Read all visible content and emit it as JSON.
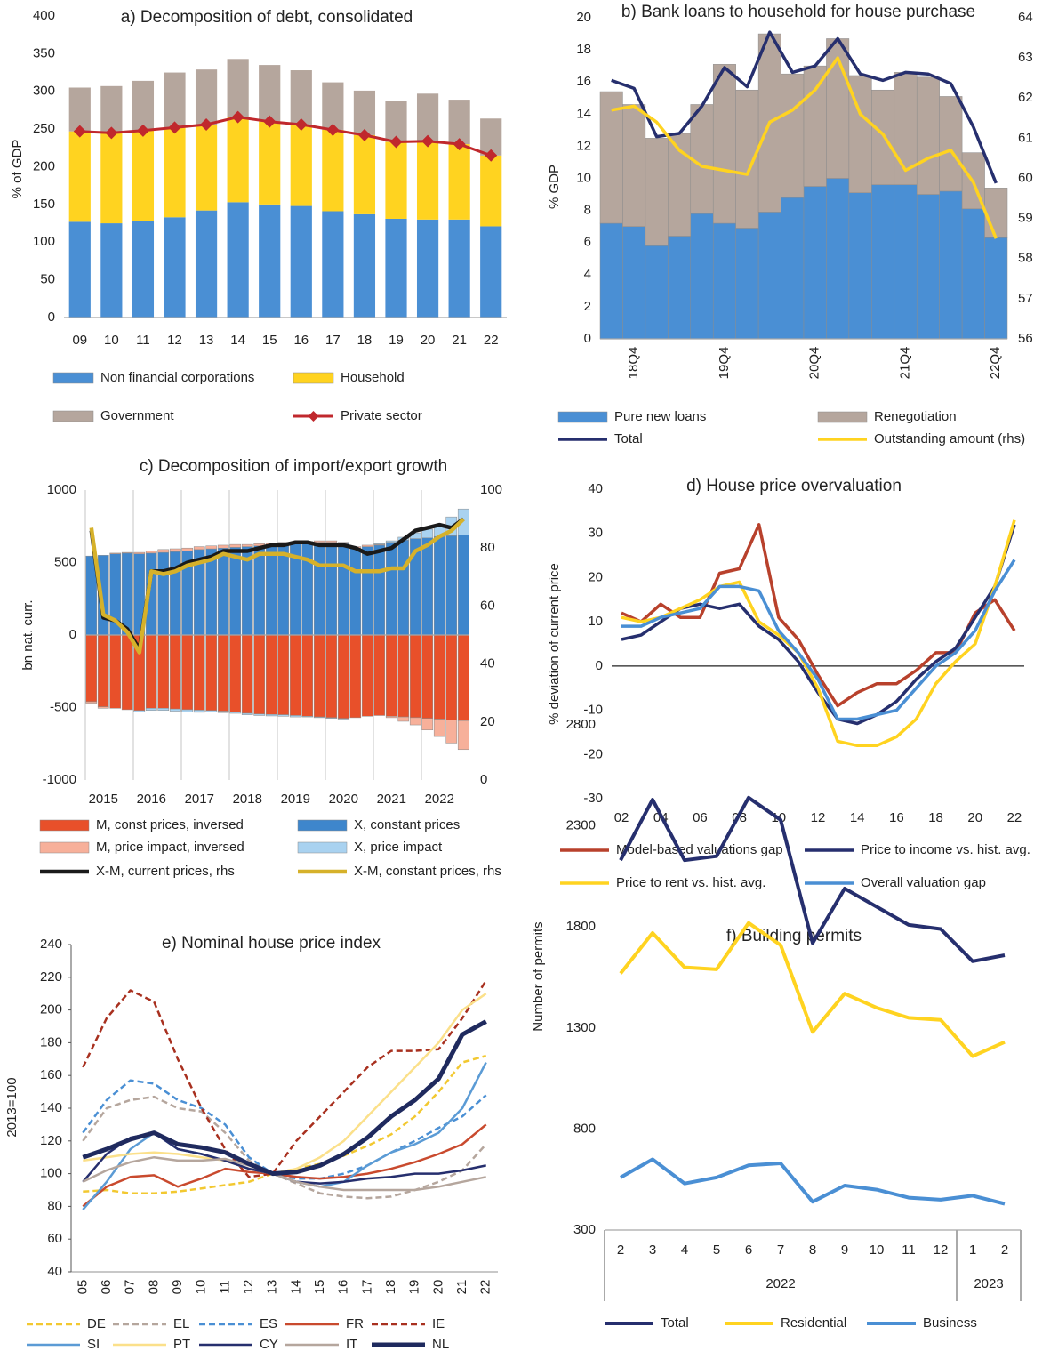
{
  "chart_data": [
    {
      "type": "bar",
      "title": "a) Decomposition of debt, consolidated",
      "y_label": "% of GDP",
      "categories": [
        "09",
        "10",
        "11",
        "12",
        "13",
        "14",
        "15",
        "16",
        "17",
        "18",
        "19",
        "20",
        "21",
        "22"
      ],
      "ylim": [
        0,
        400
      ],
      "yticks": [
        0,
        50,
        100,
        150,
        200,
        250,
        300,
        350,
        400
      ],
      "series": [
        {
          "name": "Non financial corporations",
          "type": "bar",
          "color": "#4a8fd4",
          "values": [
            127,
            125,
            128,
            133,
            142,
            153,
            150,
            148,
            141,
            137,
            131,
            130,
            130,
            121
          ]
        },
        {
          "name": "Household",
          "type": "bar",
          "color": "#ffd320",
          "values": [
            120,
            120,
            120,
            119,
            114,
            113,
            110,
            108,
            108,
            105,
            102,
            104,
            100,
            94
          ]
        },
        {
          "name": "Government",
          "type": "bar",
          "color": "#b5a69d",
          "values": [
            58,
            62,
            66,
            73,
            73,
            77,
            75,
            72,
            63,
            59,
            54,
            63,
            59,
            49
          ]
        },
        {
          "name": "Private sector",
          "type": "line",
          "marker": "diamond",
          "color": "#c0282d",
          "values": [
            247,
            245,
            248,
            252,
            256,
            266,
            260,
            256,
            249,
            242,
            233,
            234,
            230,
            215
          ]
        }
      ]
    },
    {
      "type": "bar",
      "title": "b) Bank loans to household for house purchase",
      "y_label": "% GDP",
      "categories": [
        null,
        "18Q4",
        null,
        null,
        null,
        "19Q4",
        null,
        null,
        null,
        "20Q4",
        null,
        null,
        null,
        "21Q4",
        null,
        null,
        null,
        "22Q4"
      ],
      "ylim": [
        0,
        20
      ],
      "yticks": [
        0,
        2,
        4,
        6,
        8,
        10,
        12,
        14,
        16,
        18,
        20
      ],
      "y2lim": [
        56,
        64
      ],
      "y2ticks": [
        56,
        57,
        58,
        59,
        60,
        61,
        62,
        63,
        64
      ],
      "series": [
        {
          "name": "Pure new loans",
          "type": "bar",
          "color": "#4a8fd4",
          "values": [
            7.2,
            7.0,
            5.8,
            6.4,
            7.8,
            7.2,
            6.9,
            7.9,
            8.8,
            9.5,
            10.0,
            9.1,
            9.6,
            9.6,
            9.0,
            9.2,
            8.1,
            6.3
          ]
        },
        {
          "name": "Renegotiation",
          "type": "bar",
          "color": "#b5a69d",
          "values": [
            8.2,
            7.6,
            6.7,
            6.4,
            6.8,
            9.9,
            8.6,
            11.1,
            7.7,
            7.5,
            8.7,
            7.3,
            5.9,
            7.0,
            7.3,
            5.9,
            3.5,
            3.1
          ]
        },
        {
          "name": "Total",
          "type": "line",
          "color": "#262f6e",
          "values": [
            16.1,
            15.6,
            12.6,
            12.8,
            14.5,
            16.9,
            15.7,
            19.1,
            16.6,
            17.0,
            18.7,
            16.5,
            16.1,
            16.6,
            16.5,
            15.9,
            13.2,
            9.7
          ]
        },
        {
          "name": "Outstanding amount (rhs)",
          "type": "line",
          "axis": "y2",
          "color": "#ffd320",
          "values": [
            61.7,
            61.8,
            61.4,
            60.7,
            60.3,
            60.2,
            60.1,
            61.4,
            61.7,
            62.2,
            63.0,
            61.6,
            61.1,
            60.2,
            60.5,
            60.7,
            59.9,
            58.5
          ]
        }
      ]
    },
    {
      "type": "bar",
      "title": "c) Decomposition of import/export growth",
      "y_label": "bn nat. curr.",
      "xgrid": true,
      "categories": [
        null,
        "2015",
        null,
        null,
        null,
        "2016",
        null,
        null,
        null,
        "2017",
        null,
        null,
        null,
        "2018",
        null,
        null,
        null,
        "2019",
        null,
        null,
        null,
        "2020",
        null,
        null,
        null,
        "2021",
        null,
        null,
        null,
        "2022",
        null,
        null
      ],
      "ylim": [
        -1000,
        1000
      ],
      "yticks": [
        -1000,
        -500,
        0,
        500,
        1000
      ],
      "y2lim": [
        0,
        100
      ],
      "y2ticks": [
        0,
        20,
        40,
        60,
        80,
        100
      ],
      "series": [
        {
          "name": "M, const prices, inversed",
          "type": "bar",
          "color": "#e8502a",
          "values": [
            -460,
            -495,
            -505,
            -515,
            -520,
            -505,
            -505,
            -510,
            -515,
            -518,
            -520,
            -525,
            -530,
            -540,
            -545,
            -548,
            -550,
            -555,
            -560,
            -565,
            -570,
            -575,
            -570,
            -560,
            -555,
            -560,
            -565,
            -570,
            -575,
            -580,
            -585,
            -590
          ]
        },
        {
          "name": "X, constant prices",
          "type": "bar",
          "color": "#3e86cc",
          "values": [
            545,
            550,
            560,
            565,
            560,
            565,
            570,
            575,
            580,
            590,
            595,
            600,
            605,
            610,
            615,
            620,
            625,
            630,
            635,
            640,
            640,
            630,
            600,
            610,
            620,
            640,
            655,
            665,
            670,
            680,
            685,
            690
          ]
        },
        {
          "name": "M, price impact, inversed",
          "type": "bar",
          "color": "#f7b09a",
          "values": [
            -10,
            -10,
            5,
            5,
            10,
            15,
            20,
            20,
            20,
            20,
            20,
            20,
            20,
            15,
            15,
            15,
            15,
            10,
            10,
            10,
            10,
            10,
            10,
            10,
            5,
            -10,
            -30,
            -50,
            -80,
            -120,
            -160,
            -200
          ]
        },
        {
          "name": "X, price impact",
          "type": "bar",
          "color": "#a9d2f0",
          "values": [
            0,
            0,
            0,
            0,
            -10,
            -15,
            -15,
            -15,
            -15,
            -15,
            -10,
            -10,
            -10,
            -10,
            -10,
            -10,
            -10,
            -10,
            -5,
            -5,
            -5,
            -5,
            0,
            0,
            5,
            10,
            20,
            40,
            60,
            80,
            130,
            180
          ]
        },
        {
          "name": "X-M, current prices, rhs",
          "type": "line",
          "axis": "y2",
          "color": "#1a1a1a",
          "values": [
            86,
            56,
            55,
            52,
            45,
            72,
            72,
            73,
            75,
            76,
            77,
            79,
            79,
            79,
            80,
            81,
            81,
            82,
            82,
            81,
            81,
            81,
            80,
            78,
            79,
            80,
            83,
            86,
            87,
            88,
            87,
            90
          ]
        },
        {
          "name": "X-M, constant prices, rhs",
          "type": "line",
          "axis": "y2",
          "color": "#d6b12a",
          "values": [
            87,
            57,
            55,
            51,
            44,
            72,
            71,
            72,
            74,
            75,
            76,
            78,
            77,
            76,
            78,
            78,
            78,
            77,
            76,
            74,
            74,
            74,
            72,
            72,
            72,
            73,
            73,
            79,
            81,
            84,
            86,
            90
          ]
        }
      ]
    },
    {
      "type": "line",
      "title": "d) House price overvaluation",
      "y_label": "% deviation of current price",
      "categories": [
        "02",
        null,
        "04",
        null,
        "06",
        null,
        "08",
        null,
        "10",
        null,
        "12",
        null,
        "14",
        null,
        "16",
        null,
        "18",
        null,
        "20",
        null,
        "22"
      ],
      "ylim": [
        -30,
        40
      ],
      "yticks": [
        -30,
        -20,
        -10,
        0,
        10,
        20,
        30,
        40
      ],
      "series": [
        {
          "name": "Model-based valuations gap",
          "color": "#b8412c",
          "values": [
            12,
            10,
            14,
            11,
            11,
            21,
            22,
            32,
            11,
            6,
            -2,
            -9,
            -6,
            -4,
            -4,
            -1,
            3,
            3,
            12,
            15,
            8
          ]
        },
        {
          "name": "Price to income vs. hist. avg.",
          "color": "#262f6e",
          "values": [
            6,
            7,
            10,
            13,
            14,
            13,
            14,
            9,
            6,
            1,
            -6,
            -12,
            -13,
            -11,
            -8,
            -3,
            1,
            4,
            11,
            18,
            32
          ]
        },
        {
          "name": "Price to rent vs. hist. avg.",
          "color": "#ffd320",
          "values": [
            11,
            10,
            11,
            13,
            15,
            18,
            19,
            10,
            7,
            3,
            -5,
            -17,
            -18,
            -18,
            -16,
            -12,
            -4,
            1,
            5,
            18,
            33
          ]
        },
        {
          "name": "Overall valuation gap",
          "color": "#4a8fd4",
          "values": [
            9,
            9,
            11,
            12,
            13,
            18,
            18,
            17,
            8,
            3,
            -3,
            -12,
            -12,
            -11,
            -10,
            -5,
            0,
            3,
            8,
            17,
            24
          ]
        }
      ]
    },
    {
      "type": "line",
      "title": "e) Nominal house price index",
      "y_label": "2013=100",
      "categories": [
        "05",
        "06",
        "07",
        "08",
        "09",
        "10",
        "11",
        "12",
        "13",
        "14",
        "15",
        "16",
        "17",
        "18",
        "19",
        "20",
        "21",
        "22"
      ],
      "ylim": [
        40,
        240
      ],
      "yticks": [
        40,
        60,
        80,
        100,
        120,
        140,
        160,
        180,
        200,
        220,
        240
      ],
      "series": [
        {
          "name": "DE",
          "color": "#f2c830",
          "linestyle": "dashed",
          "values": [
            89,
            90,
            88,
            88,
            89,
            91,
            93,
            95,
            100,
            103,
            106,
            111,
            117,
            124,
            135,
            150,
            168,
            172
          ]
        },
        {
          "name": "EL",
          "color": "#b5a69d",
          "linestyle": "dashed",
          "values": [
            120,
            140,
            145,
            147,
            140,
            138,
            125,
            108,
            100,
            94,
            88,
            86,
            85,
            86,
            90,
            95,
            102,
            118
          ]
        },
        {
          "name": "ES",
          "color": "#4a8fd4",
          "linestyle": "dashed",
          "values": [
            125,
            145,
            157,
            155,
            145,
            140,
            130,
            110,
            100,
            97,
            97,
            100,
            105,
            113,
            120,
            128,
            135,
            148
          ]
        },
        {
          "name": "FR",
          "color": "#c94a2e",
          "linestyle": "solid",
          "values": [
            80,
            92,
            98,
            99,
            92,
            97,
            103,
            101,
            100,
            98,
            97,
            98,
            100,
            103,
            107,
            112,
            118,
            130
          ]
        },
        {
          "name": "IE",
          "color": "#a8301f",
          "linestyle": "dashed",
          "values": [
            165,
            195,
            212,
            205,
            170,
            140,
            115,
            98,
            100,
            120,
            135,
            150,
            165,
            175,
            175,
            176,
            195,
            218
          ]
        },
        {
          "name": "SI",
          "color": "#5b9bd5",
          "linestyle": "solid",
          "values": [
            78,
            95,
            115,
            125,
            115,
            112,
            108,
            103,
            100,
            95,
            92,
            95,
            105,
            113,
            118,
            125,
            140,
            168
          ]
        },
        {
          "name": "PT",
          "color": "#fbe08a",
          "linestyle": "solid",
          "values": [
            108,
            110,
            112,
            113,
            112,
            110,
            108,
            103,
            100,
            103,
            110,
            120,
            135,
            150,
            165,
            180,
            200,
            210
          ]
        },
        {
          "name": "CY",
          "color": "#262f6e",
          "linestyle": "solid",
          "values": [
            95,
            112,
            122,
            125,
            115,
            112,
            108,
            103,
            100,
            95,
            94,
            95,
            97,
            98,
            100,
            100,
            102,
            105
          ]
        },
        {
          "name": "IT",
          "color": "#b5a69d",
          "linestyle": "solid",
          "values": [
            95,
            102,
            107,
            110,
            108,
            108,
            109,
            105,
            100,
            95,
            92,
            90,
            90,
            90,
            90,
            92,
            95,
            98
          ]
        },
        {
          "name": "NL",
          "color": "#1f2a5e",
          "linestyle": "solid",
          "linewidth": 5,
          "values": [
            110,
            115,
            121,
            125,
            118,
            116,
            113,
            106,
            100,
            101,
            105,
            112,
            122,
            135,
            145,
            158,
            185,
            193
          ]
        }
      ]
    },
    {
      "type": "line",
      "title": "f) Building permits",
      "y_label": "Number of permits",
      "categories": [
        "2",
        "3",
        "4",
        "5",
        "6",
        "7",
        "8",
        "9",
        "10",
        "11",
        "12",
        "1",
        "2"
      ],
      "groups": [
        {
          "label": "2022",
          "count": 11
        },
        {
          "label": "2023",
          "count": 2
        }
      ],
      "ylim": [
        300,
        2800
      ],
      "yticks": [
        300,
        800,
        1300,
        1800,
        2300,
        2800
      ],
      "series": [
        {
          "name": "Total",
          "color": "#262f6e",
          "values": [
            2130,
            2430,
            2130,
            2150,
            2440,
            2330,
            1720,
            1990,
            1900,
            1810,
            1790,
            1630,
            1660
          ]
        },
        {
          "name": "Residential",
          "color": "#ffd320",
          "values": [
            1570,
            1770,
            1600,
            1590,
            1820,
            1710,
            1280,
            1470,
            1400,
            1350,
            1340,
            1160,
            1230
          ]
        },
        {
          "name": "Business",
          "color": "#4a8fd4",
          "values": [
            560,
            650,
            530,
            560,
            620,
            630,
            440,
            520,
            500,
            460,
            450,
            470,
            430
          ]
        }
      ]
    }
  ]
}
